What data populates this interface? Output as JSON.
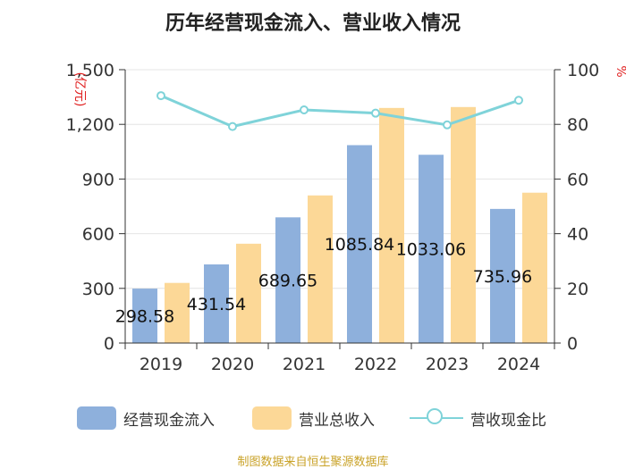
{
  "title": "历年经营现金流入、营业收入情况",
  "source": "制图数据来自恒生聚源数据库",
  "colors": {
    "cash_inflow": "#8eb0dc",
    "revenue": "#fcd897",
    "ratio_line": "#7fd3d9",
    "left_axis_label": "#e02020",
    "grid": "#e4e4e4",
    "axis": "#333333"
  },
  "legend": {
    "cash_inflow": "经营现金流入",
    "revenue": "营业总收入",
    "ratio": "营收现金比"
  },
  "chart_data": {
    "type": "bar",
    "title": "历年经营现金流入、营业收入情况",
    "categories": [
      "2019",
      "2020",
      "2021",
      "2022",
      "2023",
      "2024"
    ],
    "series": [
      {
        "name": "经营现金流入",
        "axis": "left",
        "values": [
          298.58,
          431.54,
          689.65,
          1085.84,
          1033.06,
          735.96
        ],
        "data_labels": [
          "298.58",
          "431.54",
          "689.65",
          "1085.84",
          "1033.06",
          "735.96"
        ]
      },
      {
        "name": "营业总收入",
        "axis": "left",
        "values": [
          330,
          545,
          810,
          1290,
          1295,
          825
        ]
      },
      {
        "name": "营收现金比",
        "type": "line",
        "axis": "right",
        "values": [
          90.5,
          79.2,
          85.3,
          84.1,
          79.8,
          88.8
        ]
      }
    ],
    "y_left": {
      "label": "(亿元)",
      "range": [
        0,
        1500
      ],
      "ticks": [
        "0",
        "300",
        "600",
        "900",
        "1,200",
        "1,500"
      ]
    },
    "y_right": {
      "label": "%",
      "range": [
        0,
        100
      ],
      "ticks": [
        "0",
        "20",
        "40",
        "60",
        "80",
        "100"
      ]
    },
    "grid": true,
    "legend_position": "bottom"
  }
}
